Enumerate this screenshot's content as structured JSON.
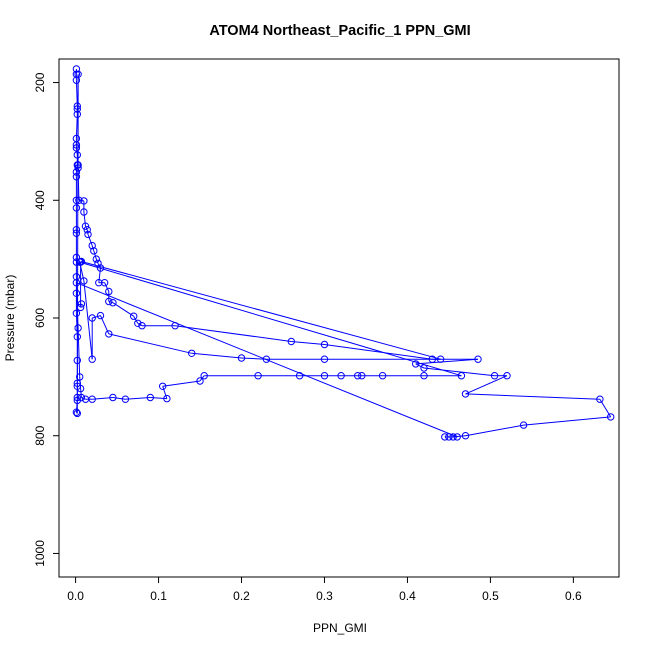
{
  "chart_data": {
    "type": "line",
    "title": "ATOM4 Northeast_Pacific_1 PPN_GMI",
    "xlabel": "PPN_GMI",
    "ylabel": "Pressure (mbar)",
    "xlim": [
      -0.02,
      0.655
    ],
    "ylim": [
      1040,
      160
    ],
    "y_reversed": true,
    "grid": false,
    "legend": "none",
    "x_ticks": [
      0.0,
      0.1,
      0.2,
      0.3,
      0.4,
      0.5,
      0.6
    ],
    "x_tick_labels": [
      "0.0",
      "0.1",
      "0.2",
      "0.3",
      "0.4",
      "0.5",
      "0.6"
    ],
    "y_ticks": [
      200,
      400,
      600,
      800,
      1000
    ],
    "y_tick_labels": [
      "200",
      "400",
      "600",
      "800",
      "1000"
    ],
    "marker": "open-circle",
    "colors": {
      "series": "#0000ff",
      "axis": "#000000",
      "background": "#ffffff"
    },
    "series": [
      {
        "points": [
          [
            0.001,
            177
          ],
          [
            0.001,
            186
          ],
          [
            0.001,
            196
          ],
          [
            0.002,
            240
          ],
          [
            0.002,
            245
          ],
          [
            0.002,
            254
          ],
          [
            0.001,
            295
          ],
          [
            0.001,
            306
          ],
          [
            0.001,
            311
          ],
          [
            0.002,
            323
          ],
          [
            0.002,
            340
          ],
          [
            0.001,
            352
          ],
          [
            0.001,
            360
          ],
          [
            0.001,
            400
          ],
          [
            0.001,
            413
          ],
          [
            0.001,
            450
          ],
          [
            0.001,
            456
          ],
          [
            0.001,
            497
          ],
          [
            0.001,
            505
          ],
          [
            0.001,
            530
          ],
          [
            0.001,
            558
          ],
          [
            0.001,
            592
          ],
          [
            0.002,
            632
          ],
          [
            0.002,
            672
          ],
          [
            0.002,
            711
          ],
          [
            0.002,
            716
          ],
          [
            0.002,
            735
          ],
          [
            0.002,
            740
          ],
          [
            0.001,
            760
          ],
          [
            0.002,
            762
          ],
          [
            0.003,
            186
          ],
          [
            0.003,
            340
          ],
          [
            0.003,
            345
          ],
          [
            0.004,
            400
          ],
          [
            0.01,
            401
          ],
          [
            0.01,
            420
          ],
          [
            0.012,
            444
          ],
          [
            0.014,
            450
          ],
          [
            0.015,
            458
          ],
          [
            0.02,
            477
          ],
          [
            0.022,
            486
          ],
          [
            0.025,
            500
          ],
          [
            0.027,
            507
          ],
          [
            0.03,
            515
          ],
          [
            0.028,
            540
          ],
          [
            0.035,
            540
          ],
          [
            0.04,
            555
          ],
          [
            0.04,
            572
          ],
          [
            0.045,
            574
          ],
          [
            0.07,
            597
          ],
          [
            0.075,
            609
          ],
          [
            0.08,
            613
          ],
          [
            0.12,
            613
          ],
          [
            0.26,
            640
          ],
          [
            0.3,
            645
          ],
          [
            0.43,
            670
          ],
          [
            0.485,
            670
          ],
          [
            0.41,
            678
          ],
          [
            0.42,
            685
          ],
          [
            0.505,
            698
          ],
          [
            0.52,
            698
          ],
          [
            0.47,
            729
          ],
          [
            0.632,
            738
          ],
          [
            0.645,
            768
          ],
          [
            0.54,
            782
          ],
          [
            0.47,
            800
          ],
          [
            0.455,
            802
          ],
          [
            0.45,
            802
          ],
          [
            0.445,
            802
          ],
          [
            0.46,
            802
          ],
          [
            0.001,
            540
          ],
          [
            0.003,
            617
          ],
          [
            0.005,
            700
          ],
          [
            0.006,
            720
          ],
          [
            0.007,
            735
          ],
          [
            0.012,
            738
          ],
          [
            0.02,
            738
          ],
          [
            0.045,
            735
          ],
          [
            0.06,
            738
          ],
          [
            0.09,
            735
          ],
          [
            0.11,
            737
          ],
          [
            0.105,
            716
          ],
          [
            0.15,
            707
          ],
          [
            0.155,
            698
          ],
          [
            0.22,
            698
          ],
          [
            0.27,
            698
          ],
          [
            0.3,
            698
          ],
          [
            0.32,
            698
          ],
          [
            0.34,
            698
          ],
          [
            0.345,
            698
          ],
          [
            0.37,
            698
          ],
          [
            0.42,
            698
          ],
          [
            0.465,
            698
          ],
          [
            0.005,
            505
          ],
          [
            0.01,
            537
          ],
          [
            0.02,
            670
          ],
          [
            0.02,
            600
          ],
          [
            0.03,
            596
          ],
          [
            0.04,
            627
          ],
          [
            0.14,
            660
          ],
          [
            0.2,
            668
          ],
          [
            0.23,
            670
          ],
          [
            0.3,
            670
          ],
          [
            0.44,
            670
          ],
          [
            0.007,
            504
          ],
          [
            0.006,
            505
          ],
          [
            0.006,
            582
          ],
          [
            0.007,
            576
          ]
        ]
      }
    ]
  }
}
